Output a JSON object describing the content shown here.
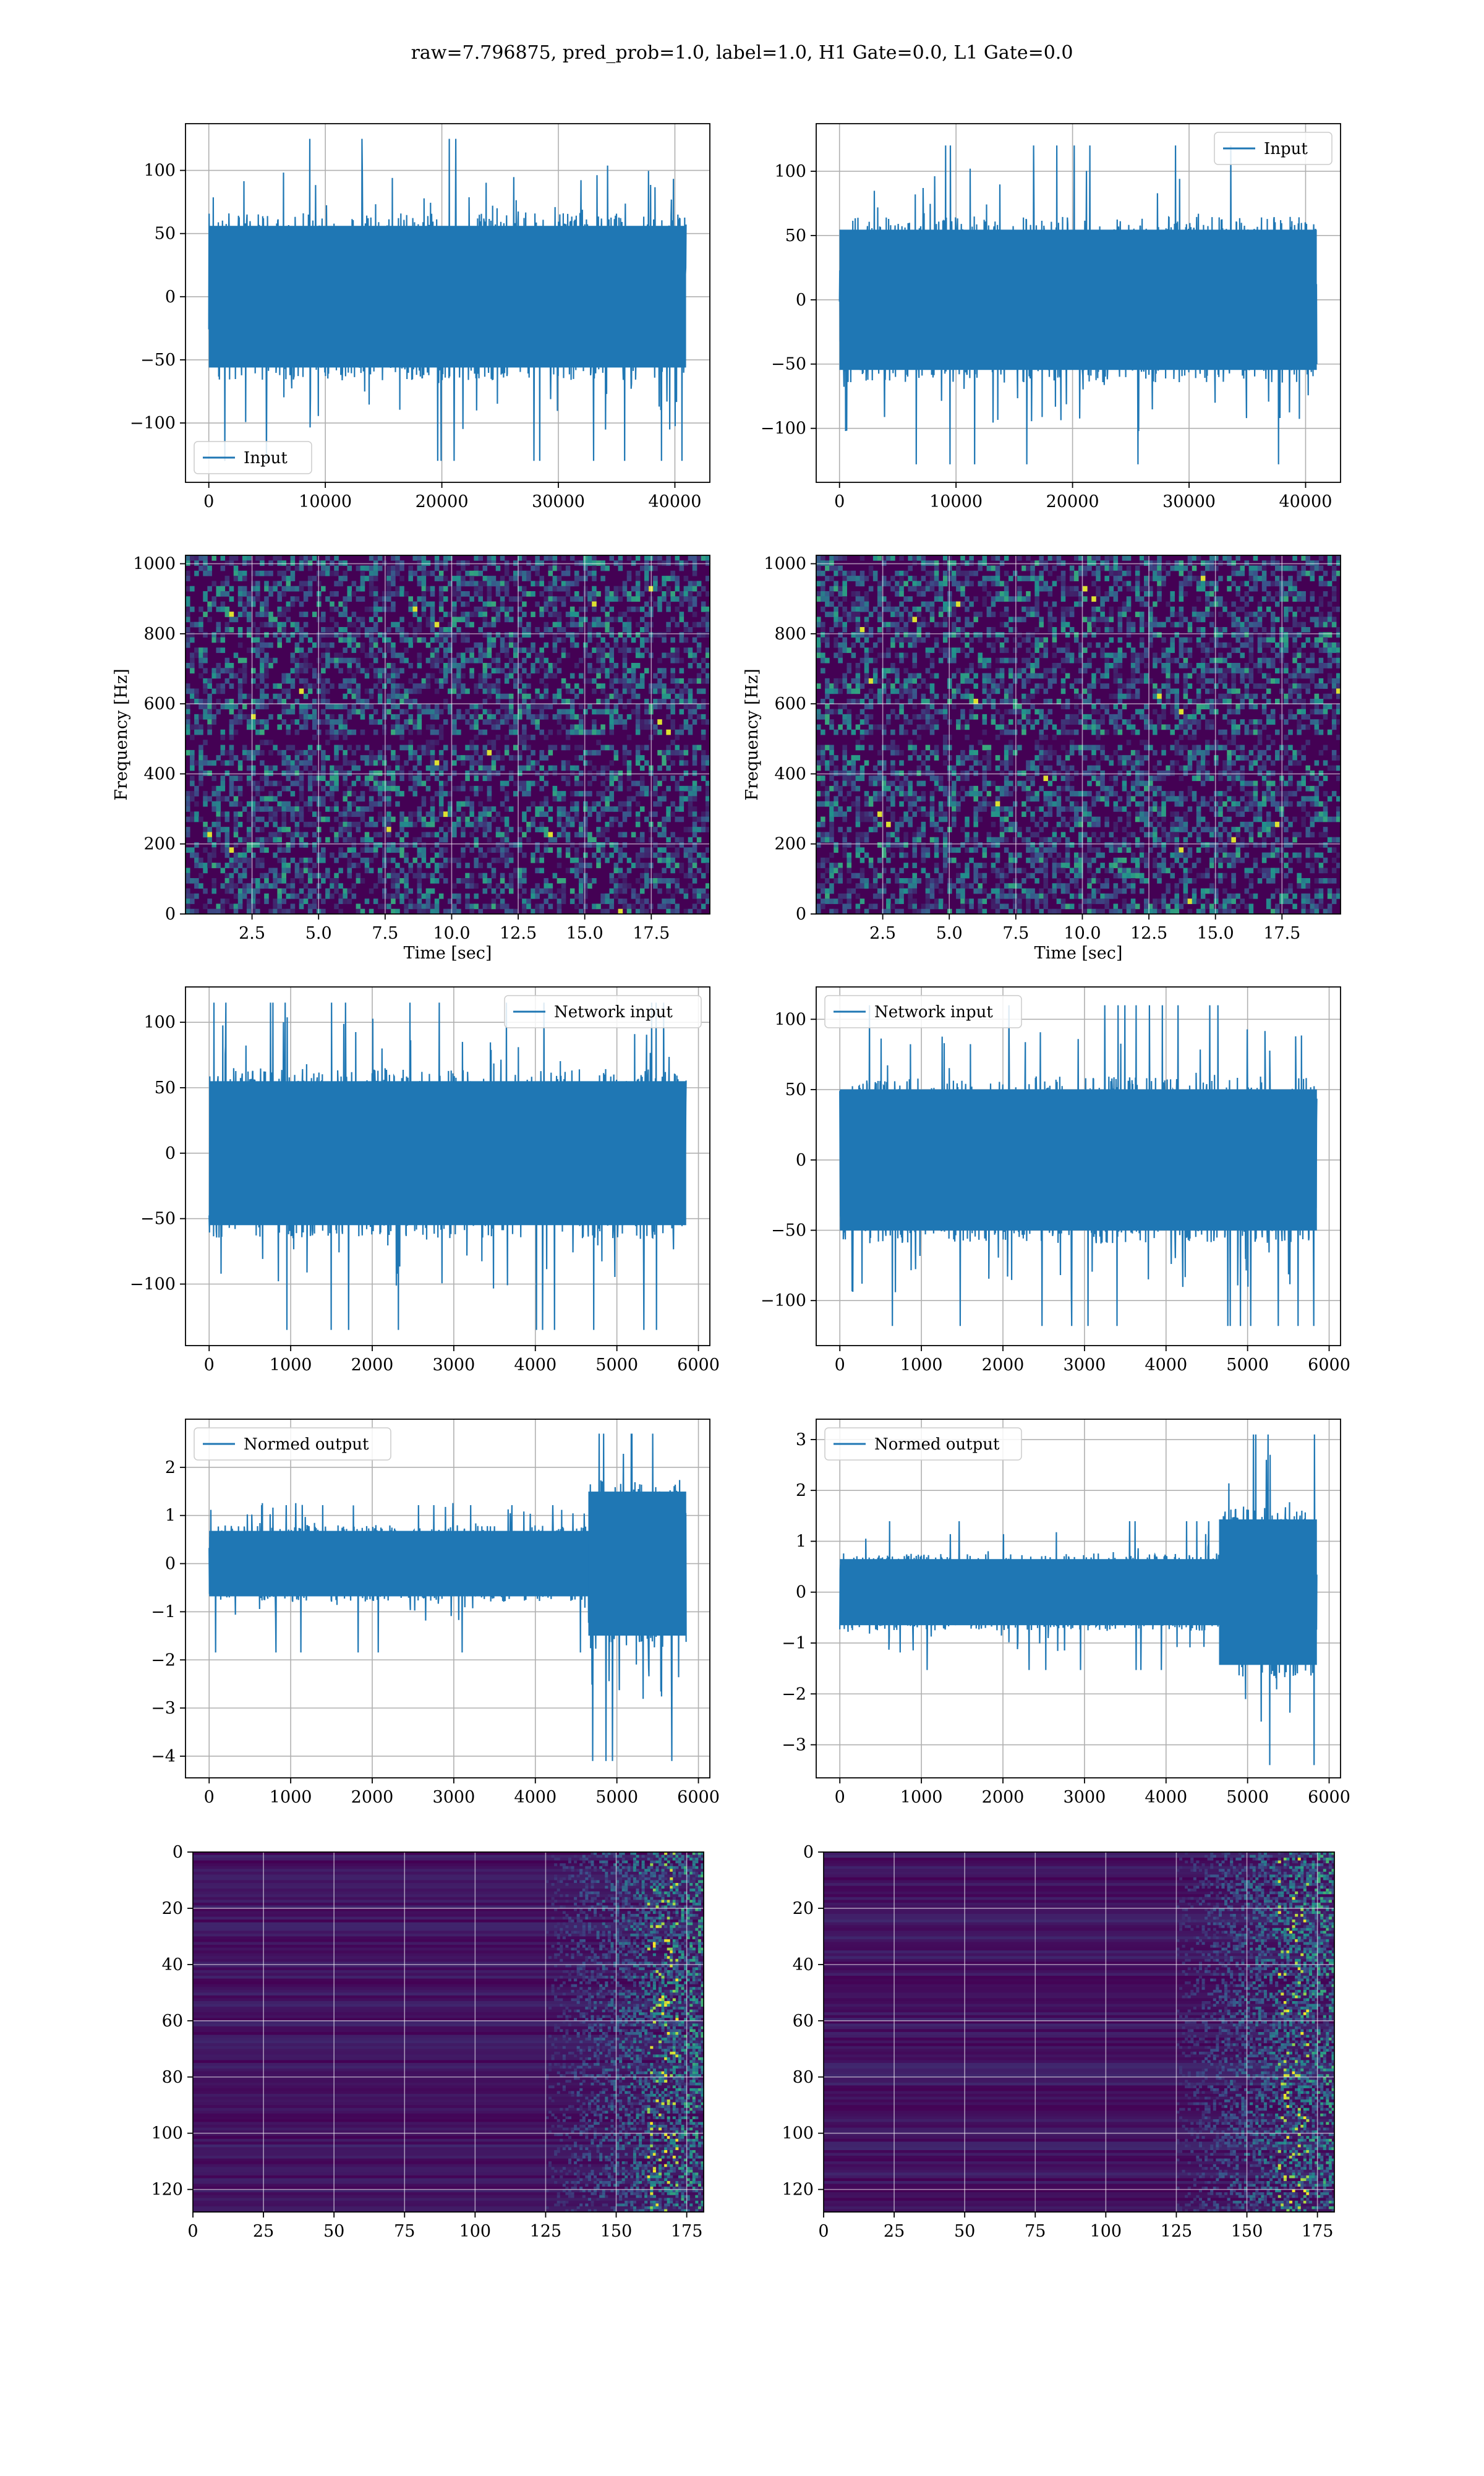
{
  "figure": {
    "suptitle": "raw=7.796875, pred_prob=1.0, label=1.0, H1 Gate=0.0, L1 Gate=0.0"
  },
  "colors": {
    "line": "#1f77b4",
    "heatmap_base": "#440154",
    "grid": "#b0b0b0"
  },
  "chart_data": [
    {
      "id": "h1-input",
      "type": "line",
      "series": [
        {
          "name": "Input",
          "signal": "noise",
          "n": 40960,
          "amplitude_range": [
            -130,
            125
          ]
        }
      ],
      "legend": "lower-left",
      "xlim": [
        -2000,
        43000
      ],
      "ylim": [
        -147,
        137
      ],
      "xticks": [
        0,
        10000,
        20000,
        30000,
        40000
      ],
      "xticklabels": [
        "0",
        "10000",
        "20000",
        "30000",
        "40000"
      ],
      "yticks": [
        -100,
        -50,
        0,
        50,
        100
      ],
      "yticklabels": [
        "−100",
        "−50",
        "0",
        "50",
        "100"
      ],
      "grid": true
    },
    {
      "id": "l1-input",
      "type": "line",
      "series": [
        {
          "name": "Input",
          "signal": "noise",
          "n": 40960,
          "amplitude_range": [
            -128,
            120
          ]
        }
      ],
      "legend": "upper-right",
      "xlim": [
        -2000,
        43000
      ],
      "ylim": [
        -142,
        137
      ],
      "xticks": [
        0,
        10000,
        20000,
        30000,
        40000
      ],
      "xticklabels": [
        "0",
        "10000",
        "20000",
        "30000",
        "40000"
      ],
      "yticks": [
        -100,
        -50,
        0,
        50,
        100
      ],
      "yticklabels": [
        "−100",
        "−50",
        "0",
        "50",
        "100"
      ],
      "grid": true
    },
    {
      "id": "h1-spectrogram",
      "type": "heatmap",
      "xlabel": "Time [sec]",
      "ylabel": "Frequency [Hz]",
      "xlim": [
        0,
        19.7
      ],
      "ylim": [
        0,
        1024
      ],
      "xticks": [
        2.5,
        5.0,
        7.5,
        10.0,
        12.5,
        15.0,
        17.5
      ],
      "xticklabels": [
        "2.5",
        "5.0",
        "7.5",
        "10.0",
        "12.5",
        "15.0",
        "17.5"
      ],
      "yticks": [
        0,
        200,
        400,
        600,
        800,
        1000
      ],
      "yticklabels": [
        "0",
        "200",
        "400",
        "600",
        "800",
        "1000"
      ],
      "colormap": "viridis",
      "pattern": "spectrogram",
      "grid": true
    },
    {
      "id": "l1-spectrogram",
      "type": "heatmap",
      "xlabel": "Time [sec]",
      "ylabel": "Frequency [Hz]",
      "xlim": [
        0,
        19.7
      ],
      "ylim": [
        0,
        1024
      ],
      "xticks": [
        2.5,
        5.0,
        7.5,
        10.0,
        12.5,
        15.0,
        17.5
      ],
      "xticklabels": [
        "2.5",
        "5.0",
        "7.5",
        "10.0",
        "12.5",
        "15.0",
        "17.5"
      ],
      "yticks": [
        0,
        200,
        400,
        600,
        800,
        1000
      ],
      "yticklabels": [
        "0",
        "200",
        "400",
        "600",
        "800",
        "1000"
      ],
      "colormap": "viridis",
      "pattern": "spectrogram",
      "grid": true
    },
    {
      "id": "h1-network-input",
      "type": "line",
      "series": [
        {
          "name": "Network input",
          "signal": "noise",
          "n": 5850,
          "amplitude_range": [
            -135,
            115
          ]
        }
      ],
      "legend": "upper-right",
      "xlim": [
        -290,
        6140
      ],
      "ylim": [
        -147,
        127
      ],
      "xticks": [
        0,
        1000,
        2000,
        3000,
        4000,
        5000,
        6000
      ],
      "xticklabels": [
        "0",
        "1000",
        "2000",
        "3000",
        "4000",
        "5000",
        "6000"
      ],
      "yticks": [
        -100,
        -50,
        0,
        50,
        100
      ],
      "yticklabels": [
        "−100",
        "−50",
        "0",
        "50",
        "100"
      ],
      "grid": true
    },
    {
      "id": "l1-network-input",
      "type": "line",
      "series": [
        {
          "name": "Network input",
          "signal": "noise",
          "n": 5850,
          "amplitude_range": [
            -118,
            110
          ]
        }
      ],
      "legend": "upper-left",
      "xlim": [
        -290,
        6140
      ],
      "ylim": [
        -132,
        123
      ],
      "xticks": [
        0,
        1000,
        2000,
        3000,
        4000,
        5000,
        6000
      ],
      "xticklabels": [
        "0",
        "1000",
        "2000",
        "3000",
        "4000",
        "5000",
        "6000"
      ],
      "yticks": [
        -100,
        -50,
        0,
        50,
        100
      ],
      "yticklabels": [
        "−100",
        "−50",
        "0",
        "50",
        "100"
      ],
      "grid": true
    },
    {
      "id": "h1-normed-output",
      "type": "line",
      "series": [
        {
          "name": "Normed output",
          "signal": "burst",
          "n": 5850,
          "burst_start": 4650,
          "amplitude_range": [
            -4.1,
            2.7
          ]
        }
      ],
      "legend": "upper-left",
      "xlim": [
        -290,
        6140
      ],
      "ylim": [
        -4.45,
        3.0
      ],
      "xticks": [
        0,
        1000,
        2000,
        3000,
        4000,
        5000,
        6000
      ],
      "xticklabels": [
        "0",
        "1000",
        "2000",
        "3000",
        "4000",
        "5000",
        "6000"
      ],
      "yticks": [
        -4,
        -3,
        -2,
        -1,
        0,
        1,
        2
      ],
      "yticklabels": [
        "−4",
        "−3",
        "−2",
        "−1",
        "0",
        "1",
        "2"
      ],
      "grid": true
    },
    {
      "id": "l1-normed-output",
      "type": "line",
      "series": [
        {
          "name": "Normed output",
          "signal": "burst",
          "n": 5850,
          "burst_start": 4650,
          "amplitude_range": [
            -3.4,
            3.1
          ]
        }
      ],
      "legend": "upper-left",
      "xlim": [
        -290,
        6140
      ],
      "ylim": [
        -3.65,
        3.4
      ],
      "xticks": [
        0,
        1000,
        2000,
        3000,
        4000,
        5000,
        6000
      ],
      "xticklabels": [
        "0",
        "1000",
        "2000",
        "3000",
        "4000",
        "5000",
        "6000"
      ],
      "yticks": [
        -3,
        -2,
        -1,
        0,
        1,
        2,
        3
      ],
      "yticklabels": [
        "−3",
        "−2",
        "−1",
        "0",
        "1",
        "2",
        "3"
      ],
      "grid": true
    },
    {
      "id": "h1-output-map",
      "type": "heatmap",
      "xlim": [
        0,
        181
      ],
      "ylim": [
        128,
        0
      ],
      "xticks": [
        0,
        25,
        50,
        75,
        100,
        125,
        150,
        175
      ],
      "xticklabels": [
        "0",
        "25",
        "50",
        "75",
        "100",
        "125",
        "150",
        "175"
      ],
      "yticks": [
        0,
        20,
        40,
        60,
        80,
        100,
        120
      ],
      "yticklabels": [
        "0",
        "20",
        "40",
        "60",
        "80",
        "100",
        "120"
      ],
      "colormap": "viridis",
      "pattern": "tail-activation",
      "grid": true
    },
    {
      "id": "l1-output-map",
      "type": "heatmap",
      "xlim": [
        0,
        181
      ],
      "ylim": [
        128,
        0
      ],
      "xticks": [
        0,
        25,
        50,
        75,
        100,
        125,
        150,
        175
      ],
      "xticklabels": [
        "0",
        "25",
        "50",
        "75",
        "100",
        "125",
        "150",
        "175"
      ],
      "yticks": [
        0,
        20,
        40,
        60,
        80,
        100,
        120
      ],
      "yticklabels": [
        "0",
        "20",
        "40",
        "60",
        "80",
        "100",
        "120"
      ],
      "colormap": "viridis",
      "pattern": "tail-activation",
      "grid": true
    }
  ]
}
